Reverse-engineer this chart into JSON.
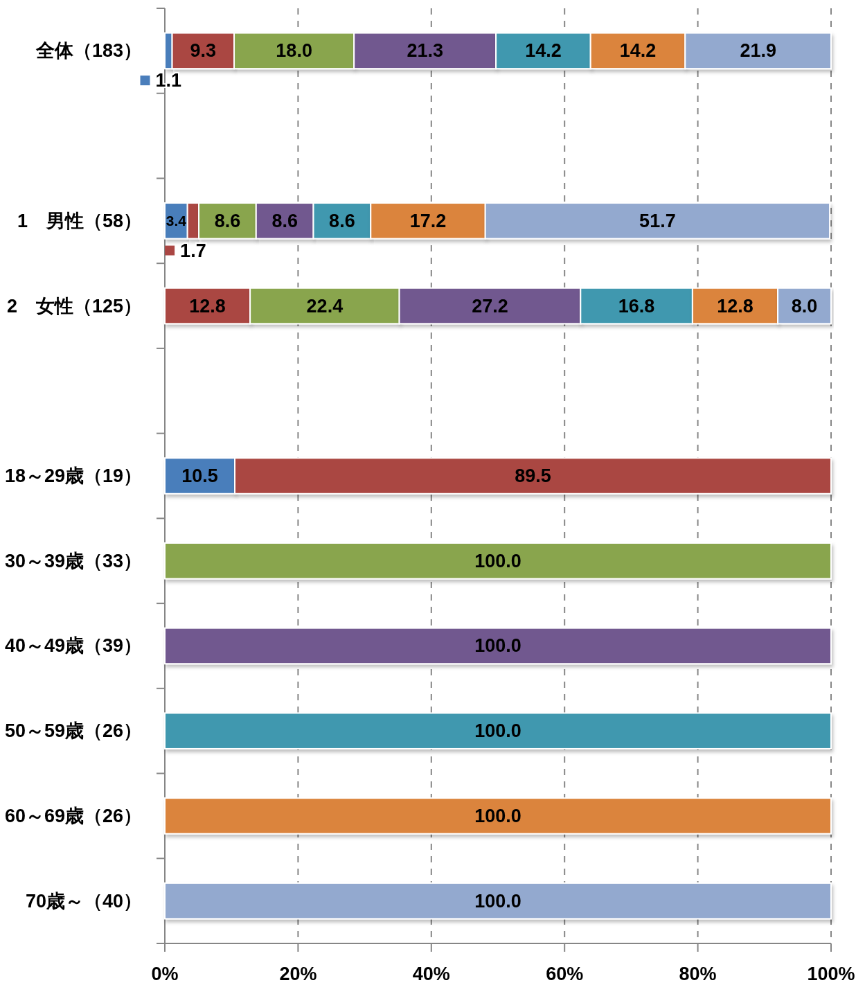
{
  "chart_data": {
    "type": "bar",
    "orientation": "horizontal",
    "stacked": true,
    "categories": [
      "全体（183）",
      null,
      "1　男性（58）",
      "2　女性（125）",
      null,
      "18～29歳（19）",
      "30～39歳（33）",
      "40～49歳（39）",
      "50～59歳（26）",
      "60～69歳（26）",
      "70歳～（40）"
    ],
    "series": [
      {
        "color": "#4a7ebb",
        "values": [
          1.1,
          null,
          3.4,
          null,
          null,
          10.5,
          null,
          null,
          null,
          null,
          null
        ],
        "value_labels": [
          "1.1",
          null,
          "3.4",
          null,
          null,
          "10.5",
          null,
          null,
          null,
          null,
          null
        ]
      },
      {
        "color": "#aa4643",
        "values": [
          9.3,
          null,
          1.7,
          12.8,
          null,
          89.5,
          null,
          null,
          null,
          null,
          null
        ],
        "value_labels": [
          "9.3",
          null,
          "1.7",
          "12.8",
          null,
          "89.5",
          null,
          null,
          null,
          null,
          null
        ]
      },
      {
        "color": "#89a54e",
        "values": [
          18.0,
          null,
          8.6,
          22.4,
          null,
          null,
          100.0,
          null,
          null,
          null,
          null
        ],
        "value_labels": [
          "18.0",
          null,
          "8.6",
          "22.4",
          null,
          null,
          "100.0",
          null,
          null,
          null,
          null
        ]
      },
      {
        "color": "#71588f",
        "values": [
          21.3,
          null,
          8.6,
          27.2,
          null,
          null,
          null,
          100.0,
          null,
          null,
          null
        ],
        "value_labels": [
          "21.3",
          null,
          "8.6",
          "27.2",
          null,
          null,
          null,
          "100.0",
          null,
          null,
          null
        ]
      },
      {
        "color": "#4198af",
        "values": [
          14.2,
          null,
          8.6,
          16.8,
          null,
          null,
          null,
          null,
          100.0,
          null,
          null
        ],
        "value_labels": [
          "14.2",
          null,
          "8.6",
          "16.8",
          null,
          null,
          null,
          null,
          "100.0",
          null,
          null
        ]
      },
      {
        "color": "#db843d",
        "values": [
          14.2,
          null,
          17.2,
          12.8,
          null,
          null,
          null,
          null,
          null,
          100.0,
          null
        ],
        "value_labels": [
          "14.2",
          null,
          "17.2",
          "12.8",
          null,
          null,
          null,
          null,
          null,
          "100.0",
          null
        ]
      },
      {
        "color": "#93a9cf",
        "values": [
          21.9,
          null,
          51.7,
          8.0,
          null,
          null,
          null,
          null,
          null,
          null,
          100.0
        ],
        "value_labels": [
          "21.9",
          null,
          "51.7",
          "8.0",
          null,
          null,
          null,
          null,
          null,
          null,
          "100.0"
        ]
      }
    ],
    "xlim": [
      0,
      100
    ],
    "xticks": [
      {
        "value": 0,
        "label": "0%"
      },
      {
        "value": 20,
        "label": "20%"
      },
      {
        "value": 40,
        "label": "40%"
      },
      {
        "value": 60,
        "label": "60%"
      },
      {
        "value": 80,
        "label": "80%"
      },
      {
        "value": 100,
        "label": "100%"
      }
    ],
    "grid": "x"
  }
}
